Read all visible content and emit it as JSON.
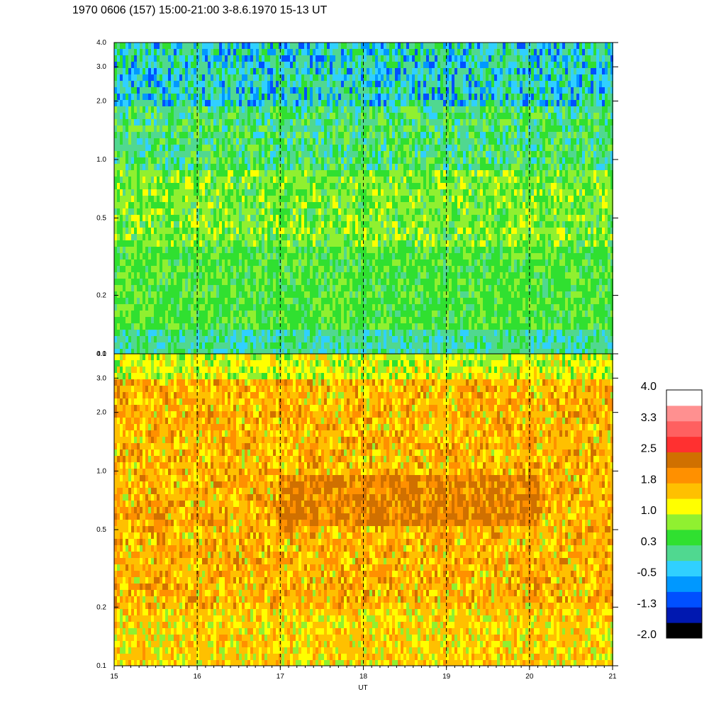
{
  "title": "1970 0606 (157) 15:00-21:00 3-8.6.1970  15-13 UT",
  "chart_data": {
    "type": "heatmap",
    "xlabel": "UT",
    "x_ticks": [
      "15",
      "16",
      "17",
      "18",
      "19",
      "20",
      "21"
    ],
    "xlim": [
      15,
      21
    ],
    "panels": [
      {
        "name": "upper",
        "y_scale": "log",
        "ylim": [
          0.1,
          4.0
        ],
        "y_ticks": [
          "0.1",
          "0.2",
          "0.5",
          "1.0",
          "2.0",
          "3.0",
          "4.0"
        ],
        "dashed_lines_at": [
          16,
          17,
          18,
          19,
          20
        ]
      },
      {
        "name": "lower",
        "y_scale": "log",
        "ylim": [
          0.1,
          4.0
        ],
        "y_ticks": [
          "0.1",
          "0.2",
          "0.5",
          "1.0",
          "2.0",
          "3.0",
          "4.0"
        ],
        "dashed_lines_at": [
          16,
          17,
          18,
          19,
          20
        ]
      }
    ],
    "colorbar": {
      "labels": [
        "4.0",
        "3.3",
        "2.5",
        "1.8",
        "1.0",
        "0.3",
        "-0.5",
        "-1.3",
        "-2.0"
      ],
      "colors": [
        "#000000",
        "#0018b0",
        "#0050ff",
        "#0098ff",
        "#30d0ff",
        "#50d890",
        "#30e030",
        "#90f030",
        "#ffff00",
        "#ffc000",
        "#ff9000",
        "#d07000",
        "#ff3030",
        "#ff6060",
        "#ff9090",
        "#ffffff"
      ]
    }
  }
}
